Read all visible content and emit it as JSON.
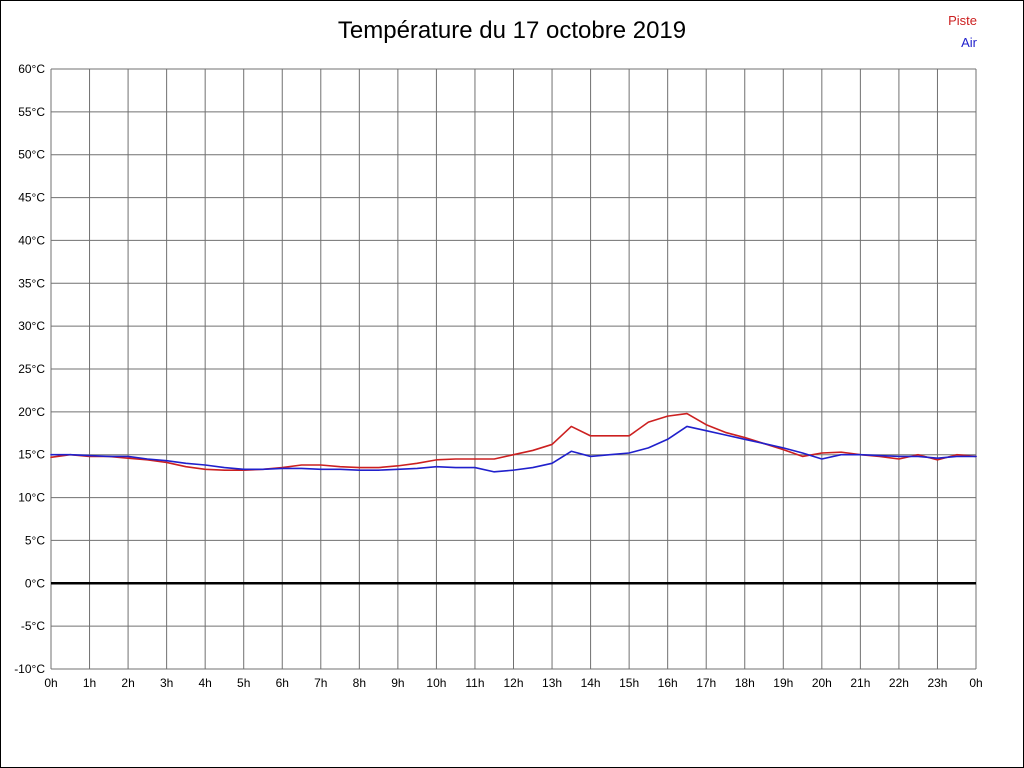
{
  "title": "Température du 17 octobre 2019",
  "chart_data": {
    "type": "line",
    "title": "Température du 17 octobre 2019",
    "xlabel": "",
    "ylabel": "",
    "x_unit": "hours",
    "ylim": [
      -10,
      60
    ],
    "xlim": [
      0,
      24
    ],
    "y_tick_step": 5,
    "grid": true,
    "grid_color": "#707070",
    "zero_line": {
      "value": 0,
      "color": "#000000",
      "width": 2.5
    },
    "legend_position": "top-right",
    "y_tick_labels": [
      "60°C",
      "55°C",
      "50°C",
      "45°C",
      "40°C",
      "35°C",
      "30°C",
      "25°C",
      "20°C",
      "15°C",
      "10°C",
      "5°C",
      "0°C",
      "-5°C",
      "-10°C"
    ],
    "x_tick_labels": [
      "0h",
      "1h",
      "2h",
      "3h",
      "4h",
      "5h",
      "6h",
      "7h",
      "8h",
      "9h",
      "10h",
      "11h",
      "12h",
      "13h",
      "14h",
      "15h",
      "16h",
      "17h",
      "18h",
      "19h",
      "20h",
      "21h",
      "22h",
      "23h",
      "0h"
    ],
    "x": [
      0,
      0.5,
      1,
      1.5,
      2,
      2.5,
      3,
      3.5,
      4,
      4.5,
      5,
      5.5,
      6,
      6.5,
      7,
      7.5,
      8,
      8.5,
      9,
      9.5,
      10,
      10.5,
      11,
      11.5,
      12,
      12.5,
      13,
      13.5,
      14,
      14.5,
      15,
      15.5,
      16,
      16.5,
      17,
      17.5,
      18,
      18.5,
      19,
      19.5,
      20,
      20.5,
      21,
      21.5,
      22,
      22.5,
      23,
      23.5,
      24
    ],
    "series": [
      {
        "name": "Piste",
        "color": "#cc2020",
        "values": [
          14.7,
          15.0,
          14.8,
          14.8,
          14.6,
          14.4,
          14.1,
          13.6,
          13.3,
          13.2,
          13.2,
          13.3,
          13.5,
          13.8,
          13.8,
          13.6,
          13.5,
          13.5,
          13.7,
          14.0,
          14.4,
          14.5,
          14.5,
          14.5,
          15.0,
          15.5,
          16.2,
          18.3,
          17.2,
          17.2,
          17.2,
          18.8,
          19.5,
          19.8,
          18.5,
          17.6,
          17.0,
          16.3,
          15.6,
          14.8,
          15.2,
          15.3,
          15.0,
          14.8,
          14.5,
          15.0,
          14.4,
          15.0,
          14.8
        ]
      },
      {
        "name": "Air",
        "color": "#2020cc",
        "values": [
          15.0,
          15.0,
          14.9,
          14.8,
          14.8,
          14.5,
          14.3,
          14.0,
          13.8,
          13.5,
          13.3,
          13.3,
          13.4,
          13.4,
          13.3,
          13.3,
          13.2,
          13.2,
          13.3,
          13.4,
          13.6,
          13.5,
          13.5,
          13.0,
          13.2,
          13.5,
          14.0,
          15.4,
          14.8,
          15.0,
          15.2,
          15.8,
          16.8,
          18.3,
          17.8,
          17.3,
          16.8,
          16.3,
          15.8,
          15.2,
          14.5,
          15.0,
          15.0,
          14.9,
          14.8,
          14.8,
          14.6,
          14.8,
          14.8
        ]
      }
    ]
  }
}
